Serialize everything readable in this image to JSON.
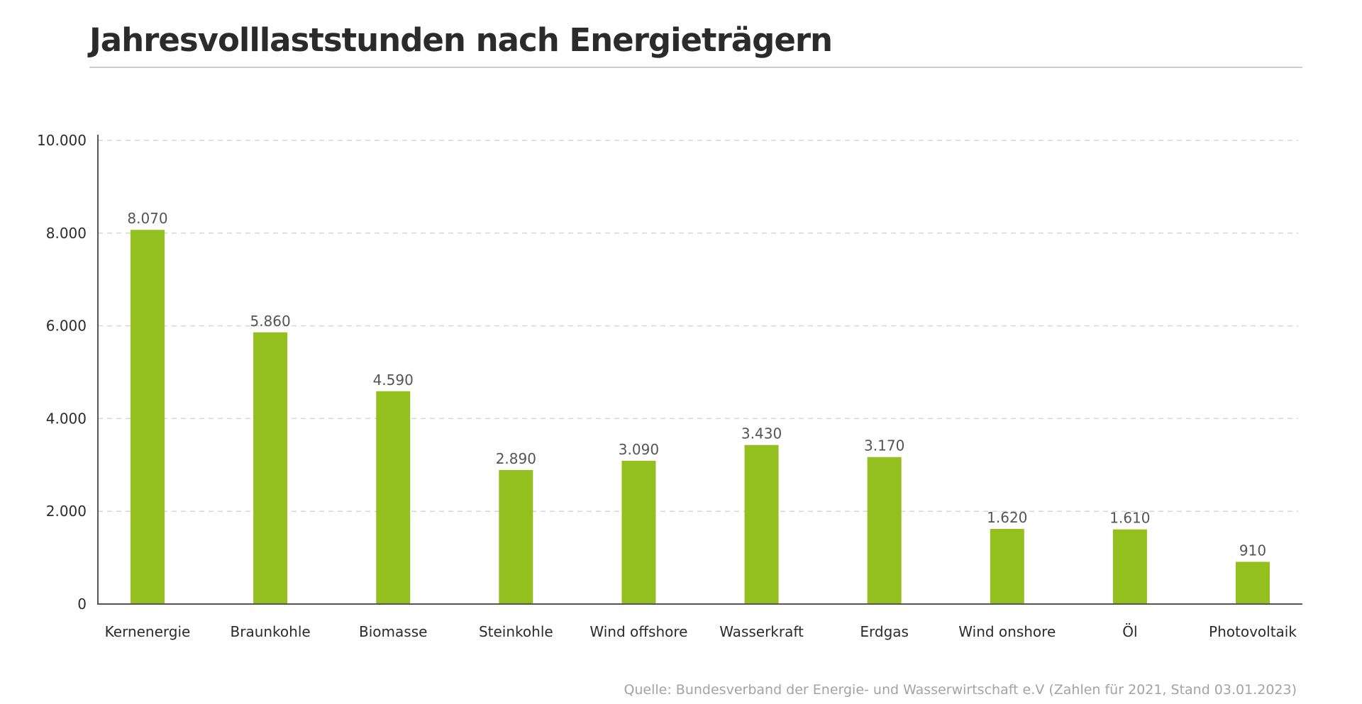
{
  "chart_data": {
    "type": "bar",
    "title": "Jahresvolllaststunden nach Energieträgern",
    "xlabel": "",
    "ylabel": "",
    "categories": [
      "Kernenergie",
      "Braunkohle",
      "Biomasse",
      "Steinkohle",
      "Wind offshore",
      "Wasserkraft",
      "Erdgas",
      "Wind onshore",
      "Öl",
      "Photovoltaik"
    ],
    "values": [
      8070,
      5860,
      4590,
      2890,
      3090,
      3430,
      3170,
      1620,
      1610,
      910
    ],
    "value_labels": [
      "8.070",
      "5.860",
      "4.590",
      "2.890",
      "3.090",
      "3.430",
      "3.170",
      "1.620",
      "1.610",
      "910"
    ],
    "ylim": [
      0,
      10000
    ],
    "yticks": [
      0,
      2000,
      4000,
      6000,
      8000,
      10000
    ],
    "ytick_labels": [
      "0",
      "2.000",
      "4.000",
      "6.000",
      "8.000",
      "10.000"
    ],
    "grid": true,
    "bar_color": "#93c01f",
    "source": "Quelle: Bundesverband der Energie- und Wasserwirtschaft e.V (Zahlen für 2021, Stand 03.01.2023)"
  }
}
